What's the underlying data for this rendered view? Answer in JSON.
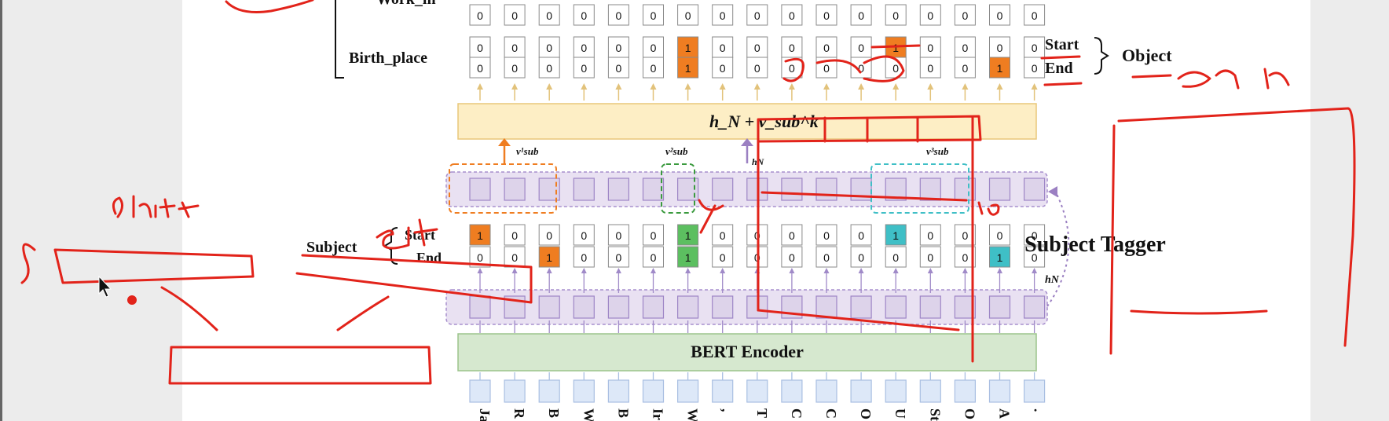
{
  "figure": {
    "title": "",
    "labels": {
      "work_in": "Work_in",
      "birth_place": "Birth_place",
      "start": "Start",
      "end": "End",
      "object": "Object",
      "subject": "Subject",
      "subject_start": "Start",
      "subject_end": "End",
      "projection": "h_N + v_sub^k",
      "v1": "v¹sub",
      "v2": "v²sub",
      "v3": "v³sub",
      "hN": "hN",
      "encoder": "BERT Encoder",
      "subject_tagger": "Subject Tagger"
    },
    "tokens": [
      "Ja",
      "R",
      "B",
      "W",
      "B",
      "Ir",
      "W",
      ",",
      "T",
      "C",
      "C",
      "O",
      "U",
      "St",
      "O",
      "A",
      "."
    ],
    "work_in_row": [
      0,
      0,
      0,
      0,
      0,
      0,
      0,
      0,
      0,
      0,
      0,
      0,
      0,
      0,
      0,
      0,
      0
    ],
    "birth_place_start": [
      0,
      0,
      0,
      0,
      0,
      0,
      1,
      0,
      0,
      0,
      0,
      0,
      1,
      0,
      0,
      0,
      0
    ],
    "birth_place_end": [
      0,
      0,
      0,
      0,
      0,
      0,
      1,
      0,
      0,
      0,
      0,
      0,
      0,
      0,
      0,
      1,
      0
    ],
    "subject_start": [
      1,
      0,
      0,
      0,
      0,
      0,
      1,
      0,
      0,
      0,
      0,
      0,
      1,
      0,
      0,
      0,
      0
    ],
    "subject_end": [
      0,
      0,
      1,
      0,
      0,
      0,
      1,
      0,
      0,
      0,
      0,
      0,
      0,
      0,
      0,
      1,
      0
    ],
    "colors": {
      "orange": "#ef7d21",
      "green": "#5cbf60",
      "teal": "#3fbfc6",
      "purple_cell": "#ddd3ea",
      "purple_band": "#e9e1f2",
      "encoder": "#d6e8cf",
      "projection": "#fdeec5",
      "token": "#dde8f8",
      "annotation": "#e2231a"
    },
    "annotations": [
      "start",
      "end",
      "start",
      "end",
      "Start",
      "10",
      "end"
    ]
  }
}
